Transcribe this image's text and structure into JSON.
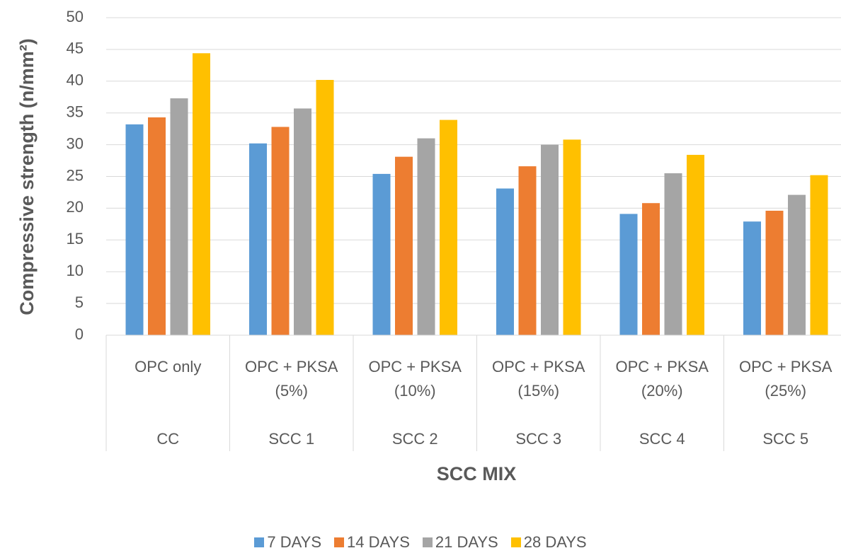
{
  "chart_data": {
    "type": "bar",
    "x_label": "SCC MIX",
    "y_label": "Compressive strength (n/mm²)",
    "categories": [
      "OPC only",
      "OPC + PKSA (5%)",
      "OPC + PKSA (10%)",
      "OPC + PKSA (15%)",
      "OPC + PKSA (20%)",
      "OPC + PKSA (25%)"
    ],
    "category_groups": [
      "CC",
      "SCC 1",
      "SCC 2",
      "SCC 3",
      "SCC 4",
      "SCC 5"
    ],
    "series": [
      {
        "name": "7 DAYS",
        "color": "#5b9bd5",
        "values": [
          33.2,
          30.2,
          25.4,
          23.1,
          19.1,
          17.9
        ]
      },
      {
        "name": "14 DAYS",
        "color": "#ed7d31",
        "values": [
          34.3,
          32.8,
          28.1,
          26.6,
          20.8,
          19.6
        ]
      },
      {
        "name": "21 DAYS",
        "color": "#a5a5a5",
        "values": [
          37.3,
          35.7,
          31.0,
          30.0,
          25.5,
          22.1
        ]
      },
      {
        "name": "28 DAYS",
        "color": "#ffc000",
        "values": [
          44.4,
          40.2,
          33.9,
          30.8,
          28.4,
          25.2
        ]
      }
    ],
    "ylim": [
      0,
      50
    ],
    "yticks": [
      0,
      5,
      10,
      15,
      20,
      25,
      30,
      35,
      40,
      45,
      50
    ],
    "grid": true,
    "legend": "bottom"
  }
}
